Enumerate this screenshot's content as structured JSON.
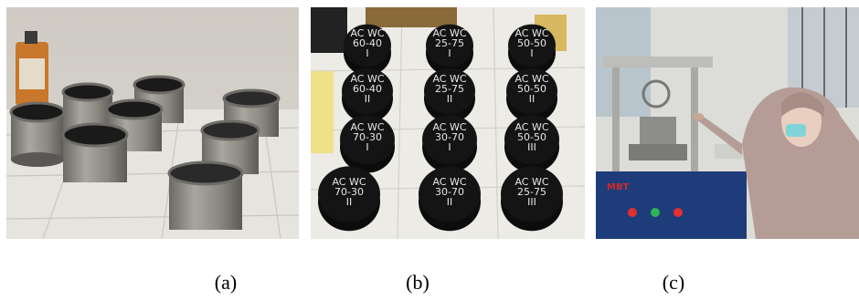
{
  "figure": {
    "panels": [
      {
        "id": "a",
        "caption": "(a)",
        "icon": "steel-mold-cylinders-photo"
      },
      {
        "id": "b",
        "caption": "(b)",
        "icon": "asphalt-specimens-photo",
        "specimen_labels": [
          "AC WC 60-40 I",
          "AC WC 25-75 I",
          "AC WC 50-50 I",
          "AC WC 60-40 II",
          "AC WC 25-75 II",
          "AC WC 50-50 II",
          "AC WC 70-30 I",
          "AC WC 30-70 I",
          "AC WC 50-50 III",
          "AC WC 70-30 II",
          "AC WC 30-70 II",
          "AC WC 25-75 III"
        ]
      },
      {
        "id": "c",
        "caption": "(c)",
        "icon": "marshall-test-machine-photo",
        "machine_brand": "MBT"
      }
    ]
  },
  "colors": {
    "background": "#ffffff",
    "asphalt": "#141414",
    "steel": "#8c8c86",
    "machine_blue": "#1f3c7a",
    "hijab": "#b69c96"
  }
}
